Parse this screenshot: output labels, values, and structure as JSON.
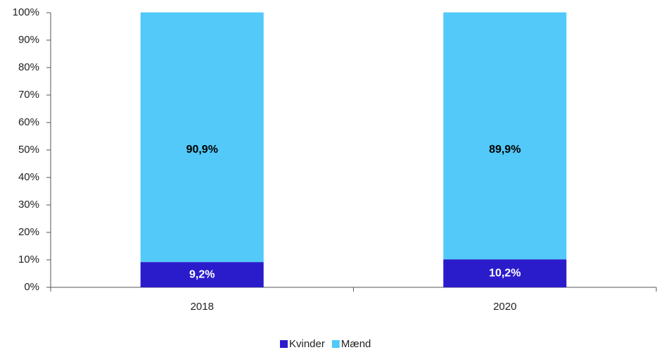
{
  "chart_data": {
    "type": "stacked_bar",
    "categories": [
      "2018",
      "2020"
    ],
    "series": [
      {
        "name": "Kvinder",
        "color": "#2b1ccb",
        "values": [
          9.2,
          10.2
        ],
        "value_labels": [
          "9,2%",
          "10,2%"
        ],
        "label_color": "#ffffff"
      },
      {
        "name": "Mænd",
        "color": "#52c9f9",
        "values": [
          90.9,
          89.9
        ],
        "value_labels": [
          "90,9%",
          "89,9%"
        ],
        "label_color": "#000000"
      }
    ],
    "ylim": [
      0,
      100
    ],
    "yticks": [
      {
        "value": 0,
        "label": "0%"
      },
      {
        "value": 10,
        "label": "10%"
      },
      {
        "value": 20,
        "label": "20%"
      },
      {
        "value": 30,
        "label": "30%"
      },
      {
        "value": 40,
        "label": "40%"
      },
      {
        "value": 50,
        "label": "50%"
      },
      {
        "value": 60,
        "label": "60%"
      },
      {
        "value": 70,
        "label": "70%"
      },
      {
        "value": 80,
        "label": "80%"
      },
      {
        "value": 90,
        "label": "90%"
      },
      {
        "value": 100,
        "label": "100%"
      }
    ],
    "legend": "bottom"
  }
}
